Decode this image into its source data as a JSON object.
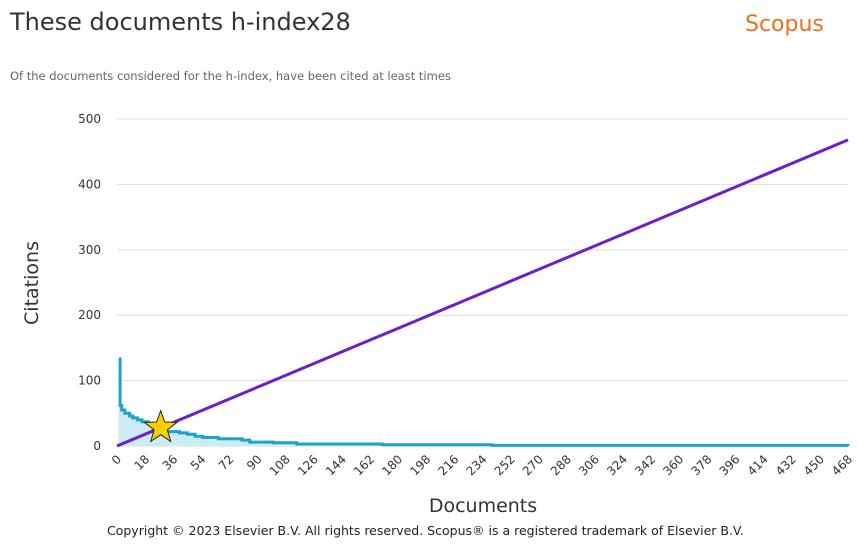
{
  "header": {
    "title": "These documents h-index28",
    "subtitle": "Of the documents considered for the h-index, have been cited at least times",
    "logo": "Scopus"
  },
  "footer": {
    "copyright": "Copyright © 2023 Elsevier B.V. All rights reserved. Scopus® is a registered trademark of Elsevier B.V."
  },
  "colors": {
    "citations": "#1ea2c8",
    "fill": "#cdebf3",
    "hline": "#6a22c8",
    "star": "#f8d000",
    "logo": "#e9711c"
  },
  "chart_data": {
    "type": "area",
    "xlabel": "Documents",
    "ylabel": "Citations",
    "xlim": [
      0,
      468
    ],
    "ylim": [
      0,
      500
    ],
    "yticks": [
      0,
      100,
      200,
      300,
      400,
      500
    ],
    "xticks": [
      0,
      18,
      36,
      54,
      72,
      90,
      108,
      126,
      144,
      162,
      180,
      198,
      216,
      234,
      252,
      270,
      288,
      306,
      324,
      342,
      360,
      378,
      396,
      414,
      432,
      450,
      468
    ],
    "grid": true,
    "h_index": 28,
    "series": [
      {
        "name": "Citations",
        "x": [
          1,
          2,
          3,
          5,
          8,
          10,
          13,
          16,
          20,
          24,
          28,
          30,
          40,
          45,
          50,
          55,
          65,
          80,
          85,
          100,
          115,
          170,
          240,
          468
        ],
        "y": [
          133,
          62,
          55,
          50,
          46,
          43,
          40,
          37,
          34,
          31,
          28,
          22,
          20,
          18,
          15,
          13,
          11,
          9,
          6,
          5,
          3,
          2,
          1,
          0
        ]
      },
      {
        "name": "h-index line",
        "x": [
          0,
          468
        ],
        "y": [
          0,
          468
        ]
      }
    ]
  }
}
